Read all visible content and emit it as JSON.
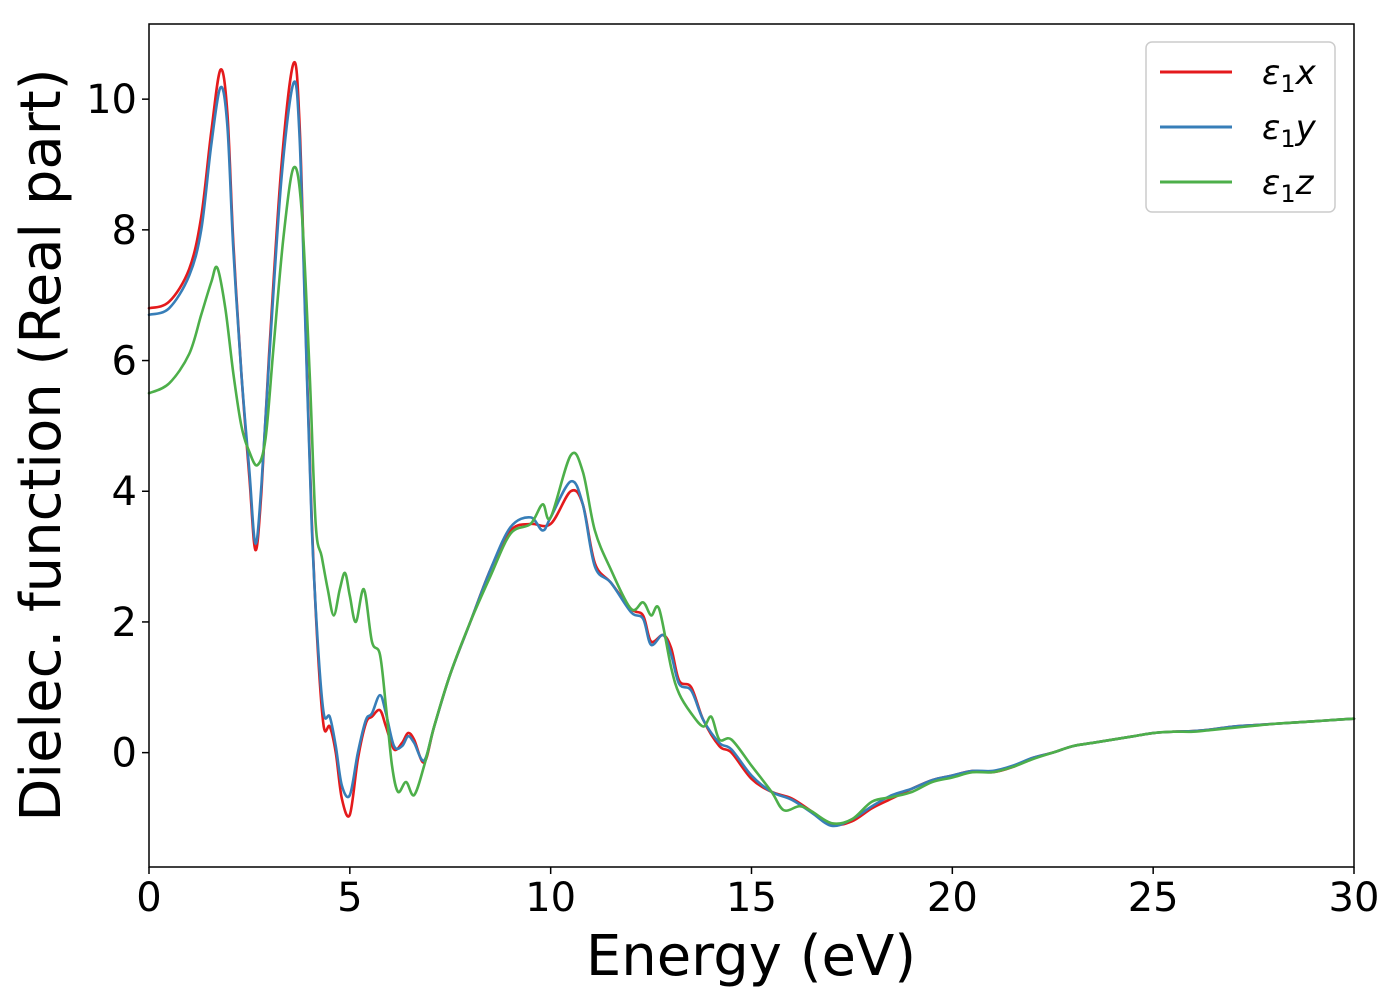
{
  "chart_data": {
    "type": "line",
    "title": "",
    "xlabel": "Energy (eV)",
    "ylabel": "Dielec. function (Real part)",
    "xlim": [
      0,
      30
    ],
    "ylim": [
      -1.75,
      11.15
    ],
    "xticks": [
      0,
      5,
      10,
      15,
      20,
      25,
      30
    ],
    "yticks": [
      0,
      2,
      4,
      6,
      8,
      10
    ],
    "grid": false,
    "legend_position": "top-right",
    "series": [
      {
        "name": "ε₁x",
        "legend_base": "ε",
        "legend_sub": "1",
        "legend_suffix": "x",
        "color": "#e41a1c",
        "points": [
          [
            0,
            6.8
          ],
          [
            0.5,
            6.9
          ],
          [
            1.0,
            7.4
          ],
          [
            1.3,
            8.2
          ],
          [
            1.55,
            9.5
          ],
          [
            1.78,
            10.45
          ],
          [
            1.95,
            9.8
          ],
          [
            2.1,
            7.8
          ],
          [
            2.3,
            5.8
          ],
          [
            2.5,
            4.2
          ],
          [
            2.65,
            3.1
          ],
          [
            2.8,
            4.0
          ],
          [
            3.0,
            6.2
          ],
          [
            3.3,
            9.0
          ],
          [
            3.6,
            10.55
          ],
          [
            3.75,
            9.6
          ],
          [
            3.9,
            6.5
          ],
          [
            4.05,
            3.6
          ],
          [
            4.2,
            1.6
          ],
          [
            4.35,
            0.4
          ],
          [
            4.5,
            0.4
          ],
          [
            4.65,
            0.0
          ],
          [
            4.8,
            -0.7
          ],
          [
            5.0,
            -0.95
          ],
          [
            5.2,
            -0.1
          ],
          [
            5.4,
            0.45
          ],
          [
            5.55,
            0.55
          ],
          [
            5.75,
            0.65
          ],
          [
            5.9,
            0.4
          ],
          [
            6.1,
            0.05
          ],
          [
            6.3,
            0.15
          ],
          [
            6.45,
            0.3
          ],
          [
            6.6,
            0.2
          ],
          [
            6.85,
            -0.15
          ],
          [
            7.1,
            0.4
          ],
          [
            7.5,
            1.2
          ],
          [
            8.0,
            2.0
          ],
          [
            8.5,
            2.8
          ],
          [
            9.0,
            3.4
          ],
          [
            9.5,
            3.5
          ],
          [
            10.0,
            3.5
          ],
          [
            10.5,
            4.0
          ],
          [
            10.8,
            3.8
          ],
          [
            11.1,
            2.9
          ],
          [
            11.5,
            2.6
          ],
          [
            12.0,
            2.2
          ],
          [
            12.3,
            2.1
          ],
          [
            12.5,
            1.7
          ],
          [
            12.8,
            1.8
          ],
          [
            13.0,
            1.6
          ],
          [
            13.2,
            1.1
          ],
          [
            13.5,
            1.0
          ],
          [
            13.8,
            0.5
          ],
          [
            14.2,
            0.1
          ],
          [
            14.5,
            0.0
          ],
          [
            15.0,
            -0.4
          ],
          [
            15.5,
            -0.6
          ],
          [
            16.0,
            -0.7
          ],
          [
            16.5,
            -0.9
          ],
          [
            17.0,
            -1.1
          ],
          [
            17.5,
            -1.05
          ],
          [
            18.0,
            -0.85
          ],
          [
            18.5,
            -0.7
          ],
          [
            19.0,
            -0.55
          ],
          [
            19.5,
            -0.42
          ],
          [
            20.0,
            -0.35
          ],
          [
            20.5,
            -0.28
          ],
          [
            21.0,
            -0.3
          ],
          [
            21.5,
            -0.22
          ],
          [
            22.0,
            -0.08
          ],
          [
            22.5,
            0.0
          ],
          [
            23.0,
            0.1
          ],
          [
            23.5,
            0.15
          ],
          [
            24.0,
            0.2
          ],
          [
            24.5,
            0.25
          ],
          [
            25.0,
            0.3
          ],
          [
            25.5,
            0.32
          ],
          [
            26.0,
            0.33
          ],
          [
            26.5,
            0.36
          ],
          [
            27.0,
            0.4
          ],
          [
            27.5,
            0.42
          ],
          [
            28.0,
            0.44
          ],
          [
            28.5,
            0.46
          ],
          [
            29.0,
            0.48
          ],
          [
            29.5,
            0.5
          ],
          [
            30.0,
            0.52
          ]
        ]
      },
      {
        "name": "ε₁y",
        "legend_base": "ε",
        "legend_sub": "1",
        "legend_suffix": "y",
        "color": "#377eb8",
        "points": [
          [
            0,
            6.7
          ],
          [
            0.5,
            6.8
          ],
          [
            1.0,
            7.3
          ],
          [
            1.3,
            8.0
          ],
          [
            1.55,
            9.3
          ],
          [
            1.78,
            10.18
          ],
          [
            1.95,
            9.6
          ],
          [
            2.1,
            7.7
          ],
          [
            2.3,
            5.8
          ],
          [
            2.5,
            4.3
          ],
          [
            2.65,
            3.2
          ],
          [
            2.8,
            4.1
          ],
          [
            3.0,
            6.1
          ],
          [
            3.3,
            8.8
          ],
          [
            3.6,
            10.25
          ],
          [
            3.75,
            9.4
          ],
          [
            3.9,
            6.4
          ],
          [
            4.05,
            3.5
          ],
          [
            4.2,
            1.7
          ],
          [
            4.35,
            0.6
          ],
          [
            4.5,
            0.55
          ],
          [
            4.65,
            0.1
          ],
          [
            4.8,
            -0.5
          ],
          [
            5.0,
            -0.65
          ],
          [
            5.2,
            0.0
          ],
          [
            5.4,
            0.5
          ],
          [
            5.55,
            0.6
          ],
          [
            5.75,
            0.88
          ],
          [
            5.9,
            0.6
          ],
          [
            6.1,
            0.1
          ],
          [
            6.3,
            0.1
          ],
          [
            6.45,
            0.25
          ],
          [
            6.6,
            0.15
          ],
          [
            6.85,
            -0.12
          ],
          [
            7.1,
            0.4
          ],
          [
            7.5,
            1.2
          ],
          [
            8.0,
            2.0
          ],
          [
            8.5,
            2.8
          ],
          [
            9.0,
            3.45
          ],
          [
            9.5,
            3.6
          ],
          [
            9.8,
            3.4
          ],
          [
            10.0,
            3.6
          ],
          [
            10.5,
            4.15
          ],
          [
            10.8,
            3.8
          ],
          [
            11.1,
            2.85
          ],
          [
            11.5,
            2.6
          ],
          [
            12.0,
            2.15
          ],
          [
            12.3,
            2.05
          ],
          [
            12.5,
            1.65
          ],
          [
            12.8,
            1.8
          ],
          [
            13.0,
            1.5
          ],
          [
            13.2,
            1.05
          ],
          [
            13.5,
            0.95
          ],
          [
            13.8,
            0.5
          ],
          [
            14.2,
            0.15
          ],
          [
            14.5,
            0.05
          ],
          [
            15.0,
            -0.35
          ],
          [
            15.5,
            -0.6
          ],
          [
            16.0,
            -0.72
          ],
          [
            16.5,
            -0.92
          ],
          [
            17.0,
            -1.12
          ],
          [
            17.5,
            -1.02
          ],
          [
            18.0,
            -0.82
          ],
          [
            18.5,
            -0.65
          ],
          [
            19.0,
            -0.55
          ],
          [
            19.5,
            -0.42
          ],
          [
            20.0,
            -0.35
          ],
          [
            20.5,
            -0.28
          ],
          [
            21.0,
            -0.28
          ],
          [
            21.5,
            -0.2
          ],
          [
            22.0,
            -0.08
          ],
          [
            22.5,
            0.0
          ],
          [
            23.0,
            0.1
          ],
          [
            23.5,
            0.15
          ],
          [
            24.0,
            0.2
          ],
          [
            24.5,
            0.25
          ],
          [
            25.0,
            0.3
          ],
          [
            25.5,
            0.32
          ],
          [
            26.0,
            0.33
          ],
          [
            26.5,
            0.36
          ],
          [
            27.0,
            0.4
          ],
          [
            27.5,
            0.42
          ],
          [
            28.0,
            0.44
          ],
          [
            28.5,
            0.46
          ],
          [
            29.0,
            0.48
          ],
          [
            29.5,
            0.5
          ],
          [
            30.0,
            0.52
          ]
        ]
      },
      {
        "name": "ε₁z",
        "legend_base": "ε",
        "legend_sub": "1",
        "legend_suffix": "z",
        "color": "#4daf4a",
        "points": [
          [
            0,
            5.5
          ],
          [
            0.5,
            5.65
          ],
          [
            1.0,
            6.1
          ],
          [
            1.3,
            6.7
          ],
          [
            1.55,
            7.2
          ],
          [
            1.7,
            7.42
          ],
          [
            1.9,
            6.8
          ],
          [
            2.1,
            5.8
          ],
          [
            2.3,
            5.0
          ],
          [
            2.5,
            4.6
          ],
          [
            2.7,
            4.4
          ],
          [
            2.9,
            4.8
          ],
          [
            3.1,
            6.2
          ],
          [
            3.35,
            7.9
          ],
          [
            3.6,
            8.95
          ],
          [
            3.8,
            8.3
          ],
          [
            4.0,
            5.8
          ],
          [
            4.15,
            3.5
          ],
          [
            4.3,
            3.0
          ],
          [
            4.45,
            2.5
          ],
          [
            4.6,
            2.1
          ],
          [
            4.75,
            2.5
          ],
          [
            4.88,
            2.75
          ],
          [
            5.0,
            2.4
          ],
          [
            5.15,
            2.0
          ],
          [
            5.35,
            2.5
          ],
          [
            5.55,
            1.7
          ],
          [
            5.75,
            1.5
          ],
          [
            5.9,
            0.7
          ],
          [
            6.05,
            -0.2
          ],
          [
            6.2,
            -0.6
          ],
          [
            6.4,
            -0.45
          ],
          [
            6.6,
            -0.65
          ],
          [
            6.85,
            -0.2
          ],
          [
            7.1,
            0.4
          ],
          [
            7.5,
            1.2
          ],
          [
            8.0,
            2.0
          ],
          [
            8.5,
            2.7
          ],
          [
            9.0,
            3.35
          ],
          [
            9.5,
            3.5
          ],
          [
            9.8,
            3.8
          ],
          [
            10.0,
            3.6
          ],
          [
            10.5,
            4.55
          ],
          [
            10.8,
            4.3
          ],
          [
            11.1,
            3.4
          ],
          [
            11.5,
            2.8
          ],
          [
            12.0,
            2.2
          ],
          [
            12.3,
            2.3
          ],
          [
            12.5,
            2.1
          ],
          [
            12.7,
            2.2
          ],
          [
            13.0,
            1.3
          ],
          [
            13.2,
            0.9
          ],
          [
            13.5,
            0.6
          ],
          [
            13.8,
            0.4
          ],
          [
            14.0,
            0.55
          ],
          [
            14.2,
            0.2
          ],
          [
            14.5,
            0.2
          ],
          [
            15.0,
            -0.2
          ],
          [
            15.5,
            -0.6
          ],
          [
            15.8,
            -0.88
          ],
          [
            16.2,
            -0.82
          ],
          [
            16.5,
            -0.9
          ],
          [
            17.0,
            -1.08
          ],
          [
            17.5,
            -1.02
          ],
          [
            18.0,
            -0.75
          ],
          [
            18.5,
            -0.68
          ],
          [
            19.0,
            -0.6
          ],
          [
            19.5,
            -0.45
          ],
          [
            20.0,
            -0.38
          ],
          [
            20.5,
            -0.3
          ],
          [
            21.0,
            -0.3
          ],
          [
            21.5,
            -0.22
          ],
          [
            22.0,
            -0.1
          ],
          [
            22.5,
            0.0
          ],
          [
            23.0,
            0.1
          ],
          [
            23.5,
            0.15
          ],
          [
            24.0,
            0.2
          ],
          [
            24.5,
            0.25
          ],
          [
            25.0,
            0.3
          ],
          [
            25.5,
            0.32
          ],
          [
            26.0,
            0.32
          ],
          [
            26.5,
            0.35
          ],
          [
            27.0,
            0.38
          ],
          [
            27.5,
            0.41
          ],
          [
            28.0,
            0.44
          ],
          [
            28.5,
            0.46
          ],
          [
            29.0,
            0.48
          ],
          [
            29.5,
            0.5
          ],
          [
            30.0,
            0.52
          ]
        ]
      }
    ]
  }
}
